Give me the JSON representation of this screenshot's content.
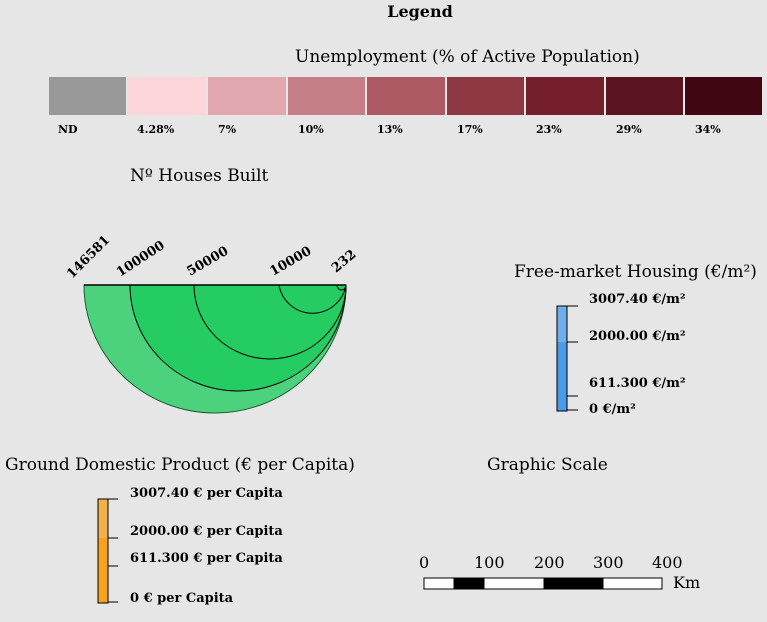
{
  "legend_title": "Legend",
  "unemployment": {
    "title": "Unemployment (% of Active Population)",
    "classes": [
      {
        "label": "ND",
        "color": "#999999"
      },
      {
        "label": "4.28%",
        "color": "#fdd6dc"
      },
      {
        "label": "7%",
        "color": "#e2a8b0"
      },
      {
        "label": "10%",
        "color": "#c77f87"
      },
      {
        "label": "13%",
        "color": "#ad5a65"
      },
      {
        "label": "17%",
        "color": "#8e3843"
      },
      {
        "label": "23%",
        "color": "#751f2c"
      },
      {
        "label": "29%",
        "color": "#5c1320"
      },
      {
        "label": "34%",
        "color": "#400611"
      }
    ]
  },
  "houses": {
    "title": "Nº Houses Built",
    "labels": [
      "146581",
      "100000",
      "50000",
      "10000",
      "232"
    ],
    "colors": {
      "outer": "#4cd27c",
      "inner": "#25cc62"
    }
  },
  "housing": {
    "title": "Free-market Housing (€/m²)",
    "ticks": [
      "3007.40 €/m²",
      "2000.00 €/m²",
      "611.300 €/m²",
      "0 €/m²"
    ],
    "colors": {
      "top": "#6eaee9",
      "bottom": "#4a9ae8"
    }
  },
  "gdp": {
    "title": "Ground Domestic Product (€ per Capita)",
    "ticks": [
      "3007.40 € per Capita",
      "2000.00 € per Capita",
      "611.300 € per Capita",
      "0 € per Capita"
    ],
    "colors": {
      "top": "#f2b04a",
      "bottom": "#f6a21e"
    }
  },
  "scale": {
    "title": "Graphic Scale",
    "ticks": [
      "0",
      "100",
      "200",
      "300",
      "400"
    ],
    "unit": "Km"
  }
}
